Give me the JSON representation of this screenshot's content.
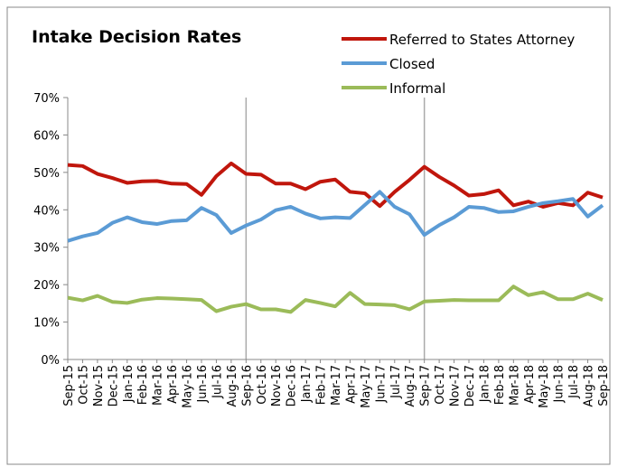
{
  "chart_data": {
    "type": "line",
    "title": "Intake Decision Rates",
    "categories": [
      "Sep-15",
      "Oct-15",
      "Nov-15",
      "Dec-15",
      "Jan-16",
      "Feb-16",
      "Mar-16",
      "Apr-16",
      "May-16",
      "Jun-16",
      "Jul-16",
      "Aug-16",
      "Sep-16",
      "Oct-16",
      "Nov-16",
      "Dec-16",
      "Jan-17",
      "Feb-17",
      "Mar-17",
      "Apr-17",
      "May-17",
      "Jun-17",
      "Jul-17",
      "Aug-17",
      "Sep-17",
      "Oct-17",
      "Nov-17",
      "Dec-17",
      "Jan-18",
      "Feb-18",
      "Mar-18",
      "Apr-18",
      "May-18",
      "Jun-18",
      "Jul-18",
      "Aug-18",
      "Sep-18"
    ],
    "series": [
      {
        "name": "Referred to States Attorney",
        "color": "#c0160c",
        "values": [
          52,
          51.7,
          49.6,
          48.5,
          47.2,
          47.6,
          47.7,
          47,
          46.9,
          44,
          49,
          52.4,
          49.6,
          49.4,
          47,
          47,
          45.5,
          47.5,
          48.1,
          44.8,
          44.4,
          41,
          44.8,
          48,
          51.5,
          48.8,
          46.5,
          43.8,
          44.2,
          45.2,
          41.2,
          42.2,
          40.8,
          41.8,
          41.2,
          44.6,
          43.3
        ]
      },
      {
        "name": "Closed",
        "color": "#5b9bd5",
        "values": [
          31.7,
          32.9,
          33.8,
          36.5,
          38,
          36.7,
          36.2,
          37,
          37.2,
          40.5,
          38.6,
          33.8,
          35.8,
          37.4,
          39.9,
          40.8,
          39,
          37.7,
          38,
          37.8,
          41.3,
          44.8,
          40.8,
          38.8,
          33.3,
          35.9,
          38,
          40.8,
          40.5,
          39.4,
          39.6,
          40.8,
          41.8,
          42.3,
          42.9,
          38.2,
          41.2
        ]
      },
      {
        "name": "Informal",
        "color": "#9bbb59",
        "values": [
          16.5,
          15.8,
          17,
          15.4,
          15.1,
          16,
          16.4,
          16.3,
          16.1,
          15.9,
          12.9,
          14.1,
          14.8,
          13.4,
          13.4,
          12.7,
          15.9,
          15.1,
          14.2,
          17.8,
          14.8,
          14.7,
          14.5,
          13.4,
          15.5,
          15.7,
          15.9,
          15.8,
          15.8,
          15.8,
          19.5,
          17.2,
          18,
          16.1,
          16.1,
          17.6,
          15.9
        ]
      }
    ],
    "ylim": [
      0,
      70
    ],
    "yticks": [
      {
        "value": 0,
        "label": "0%"
      },
      {
        "value": 10,
        "label": "10%"
      },
      {
        "value": 20,
        "label": "20%"
      },
      {
        "value": 30,
        "label": "30%"
      },
      {
        "value": 40,
        "label": "40%"
      },
      {
        "value": 50,
        "label": "50%"
      },
      {
        "value": 60,
        "label": "60%"
      },
      {
        "value": 70,
        "label": "70%"
      }
    ],
    "vertical_lines": [
      "Sep-16",
      "Sep-17"
    ],
    "grid": false,
    "legend": "top-right"
  }
}
